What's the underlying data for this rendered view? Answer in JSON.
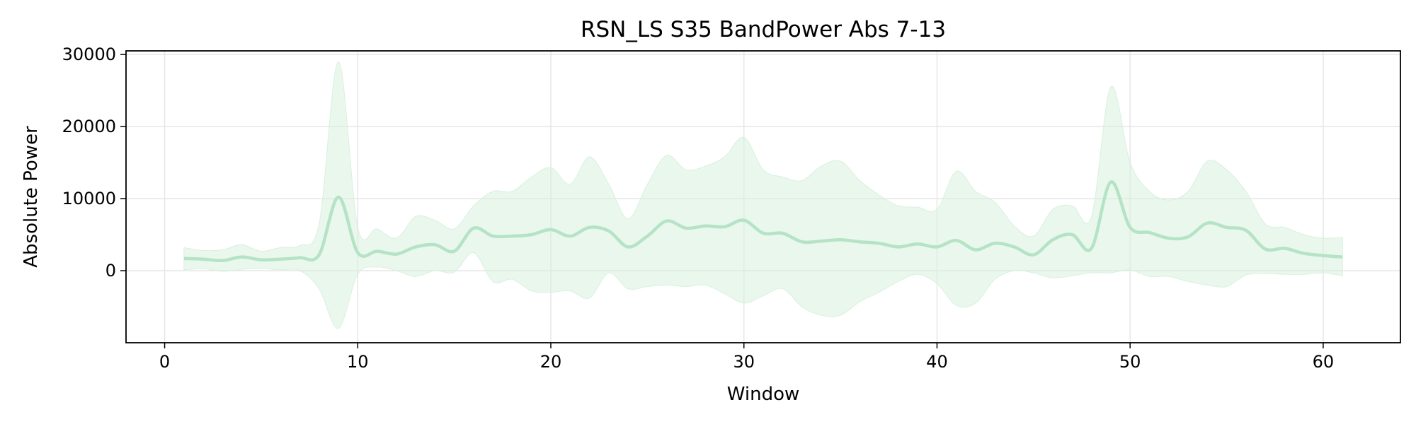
{
  "chart_data": {
    "type": "line",
    "title": "RSN_LS S35 BandPower Abs 7-13",
    "xlabel": "Window",
    "ylabel": "Absolute Power",
    "xlim": [
      -2,
      64
    ],
    "ylim": [
      -10000,
      30500
    ],
    "x_ticks": [
      0,
      10,
      20,
      30,
      40,
      50,
      60
    ],
    "y_ticks": [
      0,
      10000,
      20000,
      30000
    ],
    "grid": true,
    "colors": {
      "line": "#b5e3c5",
      "band": "#d8f0df",
      "grid": "#e6e6e6",
      "axis": "#000000"
    },
    "series": [
      {
        "x": [
          1,
          2,
          3,
          4,
          5,
          6,
          7,
          8,
          9,
          10,
          11,
          12,
          13,
          14,
          15,
          16,
          17,
          18,
          19,
          20,
          21,
          22,
          23,
          24,
          25,
          26,
          27,
          28,
          29,
          30,
          31,
          32,
          33,
          34,
          35,
          36,
          37,
          38,
          39,
          40,
          41,
          42,
          43,
          44,
          45,
          46,
          47,
          48,
          49,
          50,
          51,
          52,
          53,
          54,
          55,
          56,
          57,
          58,
          59,
          60,
          61
        ],
        "mean": [
          1700,
          1600,
          1400,
          1900,
          1500,
          1600,
          1800,
          2200,
          10200,
          2500,
          2700,
          2300,
          3300,
          3600,
          2700,
          5900,
          4800,
          4800,
          5000,
          5700,
          4800,
          6000,
          5500,
          3300,
          4800,
          6900,
          5900,
          6200,
          6100,
          7000,
          5200,
          5200,
          4000,
          4100,
          4300,
          4000,
          3800,
          3300,
          3700,
          3300,
          4200,
          2900,
          3800,
          3300,
          2200,
          4300,
          5000,
          3100,
          12300,
          6000,
          5300,
          4500,
          4700,
          6600,
          6000,
          5600,
          3000,
          3100,
          2400,
          2100,
          1900
        ],
        "upper": [
          3200,
          2800,
          2900,
          3600,
          2700,
          3200,
          3500,
          6500,
          29000,
          6000,
          5800,
          4500,
          7500,
          7000,
          5800,
          9000,
          11000,
          11000,
          13000,
          14300,
          12000,
          15800,
          12000,
          7200,
          12000,
          16000,
          14000,
          14500,
          15800,
          18500,
          14000,
          13000,
          12500,
          14500,
          15200,
          12500,
          10500,
          9000,
          8800,
          8500,
          13800,
          11000,
          9500,
          6200,
          4800,
          8500,
          9000,
          7500,
          25500,
          15000,
          11000,
          9800,
          11000,
          15200,
          14000,
          11000,
          6500,
          6000,
          5000,
          4500,
          4600
        ],
        "lower": [
          100,
          300,
          -100,
          200,
          300,
          100,
          0,
          -2500,
          -8000,
          -500,
          500,
          0,
          -800,
          0,
          -200,
          2500,
          -1500,
          -1200,
          -2800,
          -3000,
          -2800,
          -3800,
          -300,
          -2500,
          -2200,
          -2000,
          -2200,
          -2000,
          -3200,
          -4500,
          -3500,
          -2500,
          -5000,
          -6200,
          -6200,
          -4300,
          -3000,
          -1500,
          -500,
          -1800,
          -4800,
          -4500,
          -1200,
          0,
          -300,
          -1000,
          -700,
          -300,
          -300,
          100,
          -800,
          -800,
          -1500,
          -2000,
          -2200,
          -600,
          -400,
          -500,
          -500,
          -300,
          -700
        ]
      }
    ]
  }
}
